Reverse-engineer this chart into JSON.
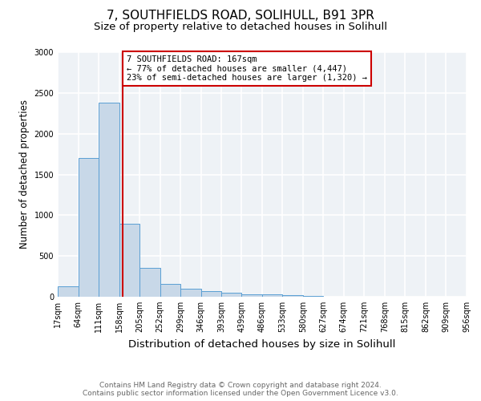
{
  "title": "7, SOUTHFIELDS ROAD, SOLIHULL, B91 3PR",
  "subtitle": "Size of property relative to detached houses in Solihull",
  "xlabel": "Distribution of detached houses by size in Solihull",
  "ylabel": "Number of detached properties",
  "bar_color": "#c8d8e8",
  "bar_edge_color": "#5a9fd4",
  "bins": [
    17,
    64,
    111,
    158,
    205,
    252,
    299,
    346,
    393,
    439,
    486,
    533,
    580,
    627,
    674,
    721,
    768,
    815,
    862,
    909,
    956
  ],
  "counts": [
    130,
    1700,
    2380,
    900,
    350,
    155,
    95,
    65,
    45,
    30,
    25,
    20,
    5,
    3,
    2,
    2,
    1,
    1,
    1,
    1
  ],
  "bin_labels": [
    "17sqm",
    "64sqm",
    "111sqm",
    "158sqm",
    "205sqm",
    "252sqm",
    "299sqm",
    "346sqm",
    "393sqm",
    "439sqm",
    "486sqm",
    "533sqm",
    "580sqm",
    "627sqm",
    "674sqm",
    "721sqm",
    "768sqm",
    "815sqm",
    "862sqm",
    "909sqm",
    "956sqm"
  ],
  "property_size": 167,
  "property_line_color": "#cc0000",
  "annotation_text": "7 SOUTHFIELDS ROAD: 167sqm\n← 77% of detached houses are smaller (4,447)\n23% of semi-detached houses are larger (1,320) →",
  "annotation_box_color": "#cc0000",
  "ylim": [
    0,
    3000
  ],
  "footnote1": "Contains HM Land Registry data © Crown copyright and database right 2024.",
  "footnote2": "Contains public sector information licensed under the Open Government Licence v3.0.",
  "background_color": "#eef2f6",
  "grid_color": "#ffffff",
  "title_fontsize": 11,
  "subtitle_fontsize": 9.5,
  "xlabel_fontsize": 9.5,
  "ylabel_fontsize": 8.5,
  "tick_fontsize": 7,
  "annotation_fontsize": 7.5,
  "footnote_fontsize": 6.5
}
